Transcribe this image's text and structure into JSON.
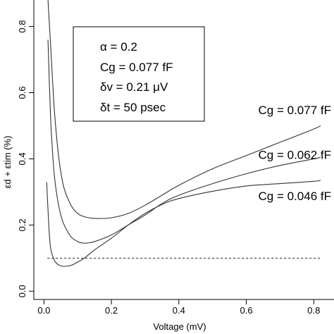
{
  "chart_data": {
    "type": "line",
    "xlabel": "Voltage (mV)",
    "ylabel": "εd + εtim (%)",
    "xlim": [
      -0.03,
      0.86
    ],
    "ylim": [
      -0.025,
      0.88
    ],
    "x_ticks": [
      0.0,
      0.2,
      0.4,
      0.6,
      0.8
    ],
    "x_tick_labels": [
      "0.0",
      "0.2",
      "0.4",
      "0.6",
      "0.8"
    ],
    "y_ticks": [
      0.0,
      0.2,
      0.4,
      0.6,
      0.8
    ],
    "y_tick_labels": [
      "0.0",
      "0.2",
      "0.4",
      "0.6",
      "0.8"
    ],
    "parameters": [
      "α = 0.2",
      "Cg = 0.077 fF",
      "δv = 0.21 μV",
      "δt = 50 psec"
    ],
    "series": [
      {
        "name": "Cg = 0.077 fF",
        "x": [
          0.012,
          0.02,
          0.03,
          0.04,
          0.05,
          0.06,
          0.08,
          0.1,
          0.12,
          0.15,
          0.2,
          0.25,
          0.3,
          0.35,
          0.4,
          0.5,
          0.6,
          0.7,
          0.8,
          0.82
        ],
        "y": [
          0.88,
          0.74,
          0.56,
          0.44,
          0.36,
          0.31,
          0.26,
          0.235,
          0.225,
          0.22,
          0.222,
          0.235,
          0.26,
          0.29,
          0.32,
          0.37,
          0.41,
          0.45,
          0.49,
          0.5
        ]
      },
      {
        "name": "Cg = 0.062 fF",
        "x": [
          0.012,
          0.02,
          0.03,
          0.04,
          0.05,
          0.06,
          0.08,
          0.1,
          0.12,
          0.15,
          0.2,
          0.25,
          0.3,
          0.35,
          0.4,
          0.5,
          0.6,
          0.7,
          0.8,
          0.82
        ],
        "y": [
          0.76,
          0.52,
          0.36,
          0.28,
          0.23,
          0.2,
          0.165,
          0.15,
          0.145,
          0.15,
          0.17,
          0.2,
          0.23,
          0.265,
          0.29,
          0.325,
          0.355,
          0.38,
          0.4,
          0.405
        ]
      },
      {
        "name": "Cg = 0.046 fF",
        "x": [
          0.008,
          0.015,
          0.02,
          0.03,
          0.04,
          0.05,
          0.06,
          0.08,
          0.1,
          0.12,
          0.15,
          0.2,
          0.25,
          0.3,
          0.35,
          0.4,
          0.5,
          0.6,
          0.7,
          0.8,
          0.82
        ],
        "y": [
          0.33,
          0.19,
          0.13,
          0.095,
          0.082,
          0.077,
          0.075,
          0.078,
          0.088,
          0.1,
          0.125,
          0.16,
          0.2,
          0.235,
          0.262,
          0.28,
          0.302,
          0.318,
          0.325,
          0.332,
          0.335
        ]
      }
    ],
    "reference_line": {
      "y": 0.1,
      "style": "dashed"
    },
    "series_label_anchor_y": [
      0.535,
      0.4,
      0.275
    ],
    "grid": false
  }
}
